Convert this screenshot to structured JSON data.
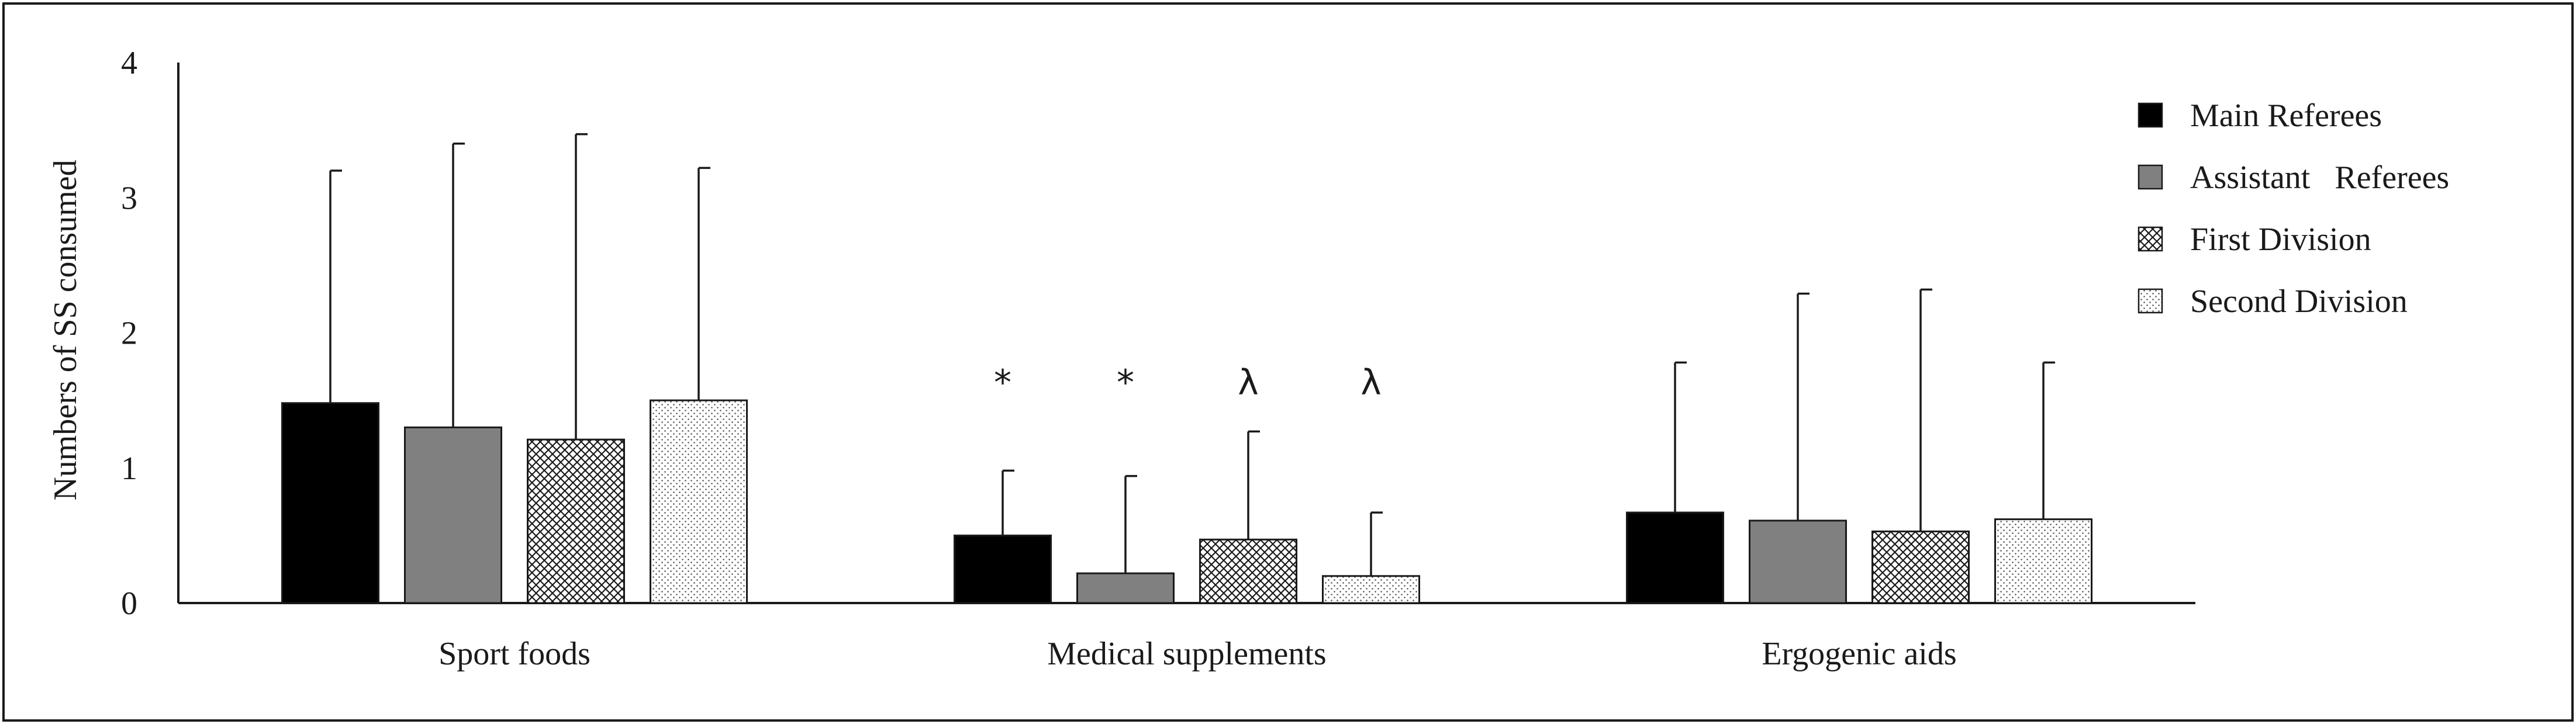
{
  "chart_data": {
    "type": "bar",
    "title": "",
    "xlabel": "",
    "ylabel": "Numbers of SS consumed",
    "ylim": [
      0,
      4
    ],
    "yticks": [
      0,
      1,
      2,
      3,
      4
    ],
    "grid": false,
    "legend_position": "top-right",
    "categories": [
      "Sport foods",
      "Medical supplements",
      "Ergogenic aids"
    ],
    "series": [
      {
        "name": "Main Referees",
        "pattern": "solid",
        "color": "#000000",
        "values": [
          1.48,
          0.5,
          0.67
        ],
        "error": [
          1.72,
          0.48,
          1.11
        ],
        "annotations": [
          "",
          "*",
          ""
        ]
      },
      {
        "name": "Assistant   Referees",
        "pattern": "solid",
        "color": "#808080",
        "values": [
          1.3,
          0.22,
          0.61
        ],
        "error": [
          2.1,
          0.72,
          1.68
        ],
        "annotations": [
          "",
          "*",
          ""
        ]
      },
      {
        "name": "First Division",
        "pattern": "crosshatch",
        "color": "#ffffff",
        "values": [
          1.21,
          0.47,
          0.53
        ],
        "error": [
          2.26,
          0.8,
          1.79
        ],
        "annotations": [
          "",
          "λ",
          ""
        ]
      },
      {
        "name": "Second Division",
        "pattern": "dots",
        "color": "#ffffff",
        "values": [
          1.5,
          0.2,
          0.62
        ],
        "error": [
          1.72,
          0.47,
          1.16
        ],
        "annotations": [
          "",
          "λ",
          ""
        ]
      }
    ]
  }
}
